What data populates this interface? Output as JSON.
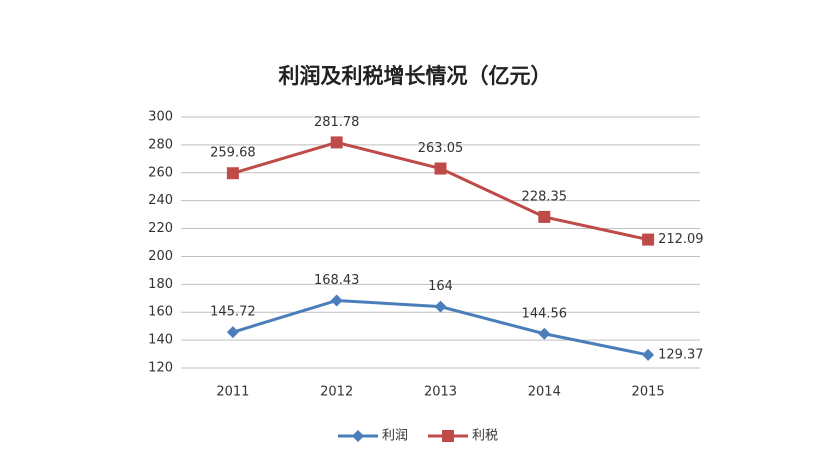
{
  "chart_data": {
    "type": "line",
    "title": "利润及利税增长情况（亿元）",
    "categories": [
      "2011",
      "2012",
      "2013",
      "2014",
      "2015"
    ],
    "series": [
      {
        "name": "利润",
        "color": "#4a7ebb",
        "marker": "diamond",
        "values": [
          145.72,
          168.43,
          164,
          144.56,
          129.37
        ]
      },
      {
        "name": "利税",
        "color": "#be4b48",
        "marker": "square",
        "values": [
          259.68,
          281.78,
          263.05,
          228.35,
          212.09
        ]
      }
    ],
    "ylim": [
      120,
      300
    ],
    "yticks": [
      120,
      140,
      160,
      180,
      200,
      220,
      240,
      260,
      280,
      300
    ],
    "grid": true,
    "legend": "bottom"
  }
}
